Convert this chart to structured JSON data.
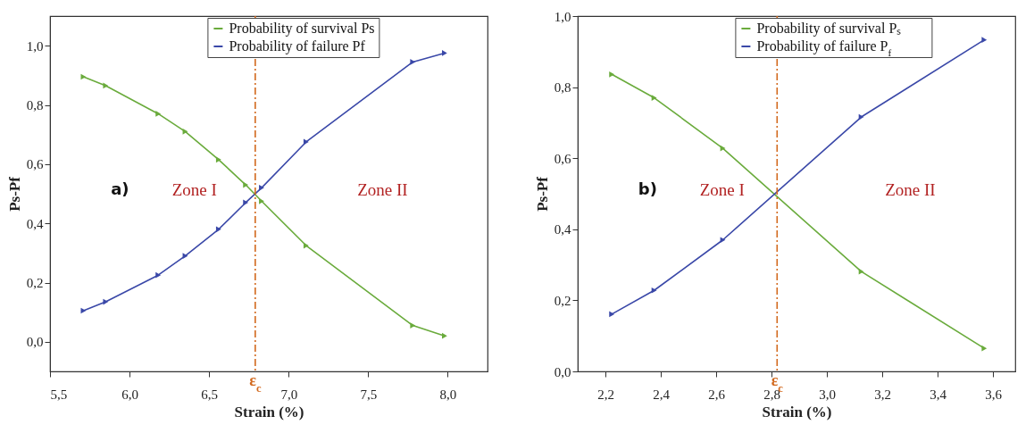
{
  "chart_data": [
    {
      "type": "line",
      "xlabel": "Strain (%)",
      "ylabel": "Ps-Pf",
      "x": [
        5.71,
        5.85,
        6.18,
        6.35,
        6.56,
        6.73,
        6.83,
        7.11,
        7.78,
        7.98
      ],
      "series": [
        {
          "name": "Probability of survival Ps",
          "color": "#6aab3c",
          "values": [
            0.895,
            0.865,
            0.77,
            0.71,
            0.615,
            0.53,
            0.475,
            0.325,
            0.055,
            0.02
          ]
        },
        {
          "name": "Probability of failure  Pf",
          "color": "#3a48a8",
          "values": [
            0.105,
            0.135,
            0.225,
            0.29,
            0.38,
            0.47,
            0.52,
            0.675,
            0.945,
            0.975
          ]
        }
      ],
      "xlim": [
        5.5,
        8.25
      ],
      "ylim": [
        -0.1,
        1.1
      ],
      "xticks": [
        {
          "value": 5.5,
          "label": "5,5"
        },
        {
          "value": 6.0,
          "label": "6,0"
        },
        {
          "value": 6.5,
          "label": "6,5"
        },
        {
          "value": 7.0,
          "label": "7,0"
        },
        {
          "value": 7.5,
          "label": "7,5"
        },
        {
          "value": 8.0,
          "label": "8,0"
        }
      ],
      "yticks": [
        {
          "value": 0,
          "label": "0,0"
        },
        {
          "value": 0.2,
          "label": "0,2"
        },
        {
          "value": 0.4,
          "label": "0,4"
        },
        {
          "value": 0.6,
          "label": "0,6"
        },
        {
          "value": 0.8,
          "label": "0,8"
        },
        {
          "value": 1.0,
          "label": "1,0"
        }
      ],
      "ref_lines": [
        {
          "axis": "x",
          "value": 6.79,
          "label": "ε$_{c}$",
          "color": "#d2691e",
          "line_style": "dashdot"
        }
      ],
      "annotations": [
        "a)",
        "Zone I",
        "Zone II"
      ],
      "marker": "triangle",
      "line_style": "solid",
      "grid": false,
      "legend": "top"
    },
    {
      "type": "line",
      "xlabel": "Strain (%)",
      "ylabel": "Ps-Pf",
      "x": [
        2.223,
        2.376,
        2.624,
        3.124,
        3.568
      ],
      "series": [
        {
          "name": "Probability of survival Pₛ",
          "color": "#6aab3c",
          "values": [
            0.836,
            0.77,
            0.628,
            0.281,
            0.065
          ]
        },
        {
          "name": "Probability of failure P$_{f}$",
          "color": "#3a48a8",
          "values": [
            0.161,
            0.228,
            0.37,
            0.716,
            0.933
          ]
        }
      ],
      "xlim": [
        2.1,
        3.68
      ],
      "ylim": [
        0,
        1.0
      ],
      "xticks": [
        {
          "value": 2.2,
          "label": "2,2"
        },
        {
          "value": 2.4,
          "label": "2,4"
        },
        {
          "value": 2.6,
          "label": "2,6"
        },
        {
          "value": 2.8,
          "label": "2,8"
        },
        {
          "value": 3.0,
          "label": "3,0"
        },
        {
          "value": 3.2,
          "label": "3,2"
        },
        {
          "value": 3.4,
          "label": "3,4"
        },
        {
          "value": 3.6,
          "label": "3,6"
        }
      ],
      "yticks": [
        {
          "value": 0,
          "label": "0,0"
        },
        {
          "value": 0.2,
          "label": "0,2"
        },
        {
          "value": 0.4,
          "label": "0,4"
        },
        {
          "value": 0.6,
          "label": "0,6"
        },
        {
          "value": 0.8,
          "label": "0,8"
        },
        {
          "value": 1.0,
          "label": "1,0"
        }
      ],
      "ref_lines": [
        {
          "axis": "x",
          "value": 2.82,
          "label": "ε$_{c}$",
          "color": "#d2691e",
          "line_style": "dashdot"
        }
      ],
      "annotations": [
        "b)",
        "Zone I",
        "Zone II"
      ],
      "marker": "triangle",
      "line_style": "solid",
      "grid": false,
      "legend": "top"
    }
  ]
}
